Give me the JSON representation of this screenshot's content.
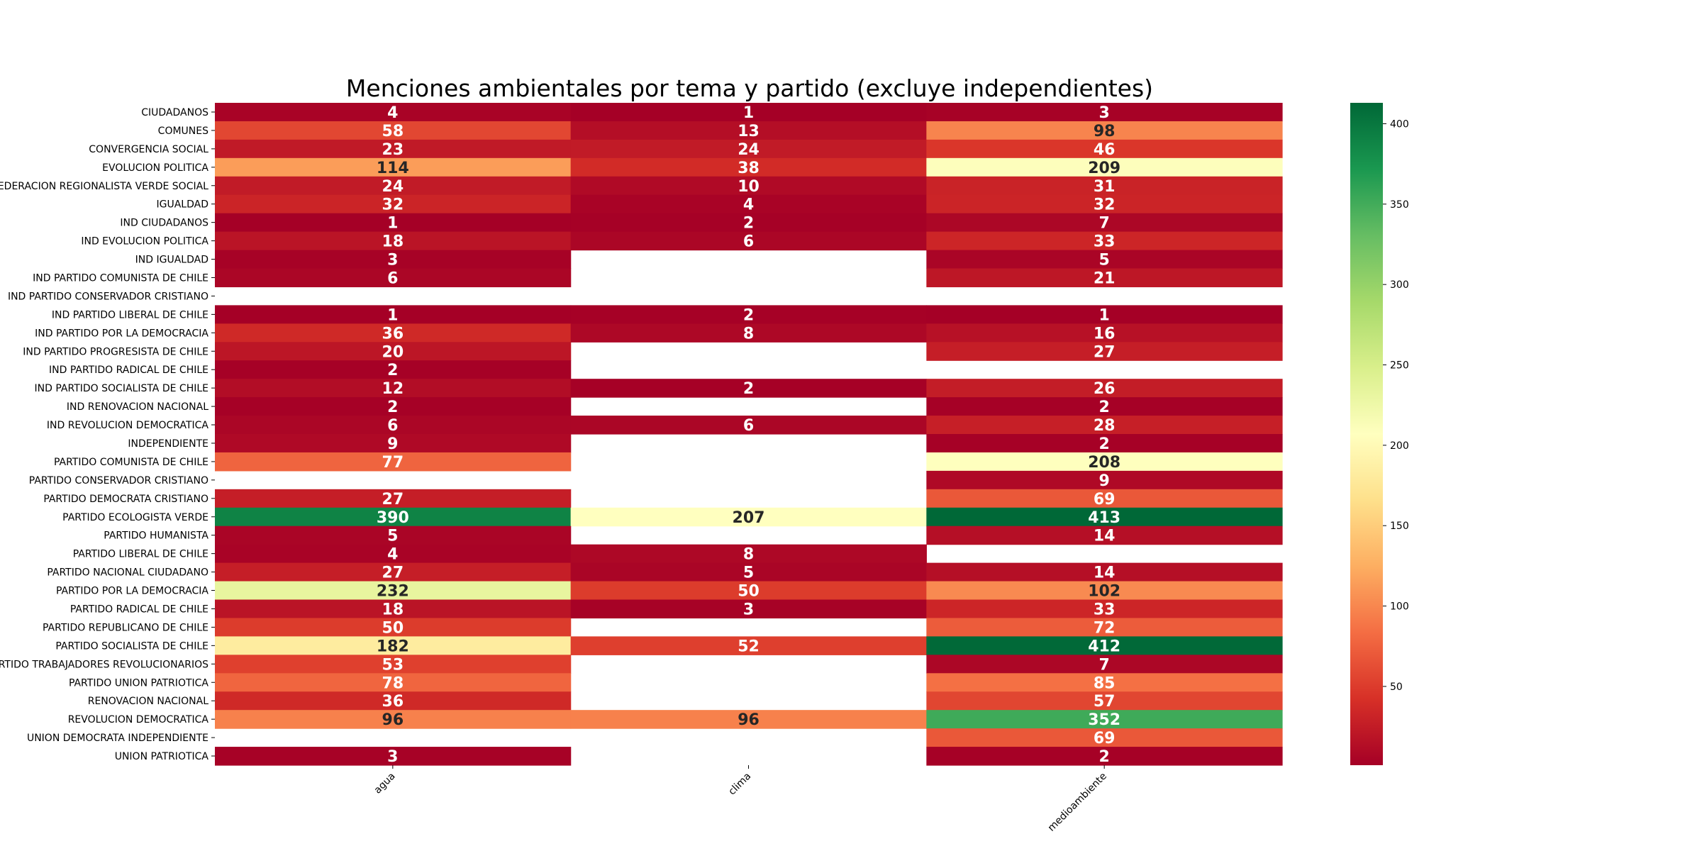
{
  "chart_data": {
    "type": "heatmap",
    "title": "Menciones ambientales por tema y partido (excluye independientes)",
    "columns": [
      "agua",
      "clima",
      "medioambiente"
    ],
    "rows": [
      "CIUDADANOS",
      "COMUNES",
      "CONVERGENCIA SOCIAL",
      "EVOLUCION POLITICA",
      "FEDERACION REGIONALISTA VERDE SOCIAL",
      "IGUALDAD",
      "IND CIUDADANOS",
      "IND EVOLUCION POLITICA",
      "IND IGUALDAD",
      "IND PARTIDO COMUNISTA DE CHILE",
      "IND PARTIDO CONSERVADOR CRISTIANO",
      "IND PARTIDO LIBERAL DE CHILE",
      "IND PARTIDO POR LA DEMOCRACIA",
      "IND PARTIDO PROGRESISTA DE CHILE",
      "IND PARTIDO RADICAL DE CHILE",
      "IND PARTIDO SOCIALISTA DE CHILE",
      "IND RENOVACION NACIONAL",
      "IND REVOLUCION DEMOCRATICA",
      "INDEPENDIENTE",
      "PARTIDO COMUNISTA DE CHILE",
      "PARTIDO CONSERVADOR CRISTIANO",
      "PARTIDO DEMOCRATA CRISTIANO",
      "PARTIDO ECOLOGISTA VERDE",
      "PARTIDO HUMANISTA",
      "PARTIDO LIBERAL DE CHILE",
      "PARTIDO NACIONAL CIUDADANO",
      "PARTIDO POR LA DEMOCRACIA",
      "PARTIDO RADICAL DE CHILE",
      "PARTIDO REPUBLICANO DE CHILE",
      "PARTIDO SOCIALISTA DE CHILE",
      "PARTIDO TRABAJADORES REVOLUCIONARIOS",
      "PARTIDO UNION PATRIOTICA",
      "RENOVACION NACIONAL",
      "REVOLUCION DEMOCRATICA",
      "UNION DEMOCRATA INDEPENDIENTE",
      "UNION PATRIOTICA"
    ],
    "values": [
      [
        4,
        1,
        3
      ],
      [
        58,
        13,
        98
      ],
      [
        23,
        24,
        46
      ],
      [
        114,
        38,
        209
      ],
      [
        24,
        10,
        31
      ],
      [
        32,
        4,
        32
      ],
      [
        1,
        2,
        7
      ],
      [
        18,
        6,
        33
      ],
      [
        3,
        null,
        5
      ],
      [
        6,
        null,
        21
      ],
      [
        null,
        null,
        null
      ],
      [
        1,
        2,
        1
      ],
      [
        36,
        8,
        16
      ],
      [
        20,
        null,
        27
      ],
      [
        2,
        null,
        null
      ],
      [
        12,
        2,
        26
      ],
      [
        2,
        null,
        2
      ],
      [
        6,
        6,
        28
      ],
      [
        9,
        null,
        2
      ],
      [
        77,
        null,
        208
      ],
      [
        null,
        null,
        9
      ],
      [
        27,
        null,
        69
      ],
      [
        390,
        207,
        413
      ],
      [
        5,
        null,
        14
      ],
      [
        4,
        8,
        null
      ],
      [
        27,
        5,
        14
      ],
      [
        232,
        50,
        102
      ],
      [
        18,
        3,
        33
      ],
      [
        50,
        null,
        72
      ],
      [
        182,
        52,
        412
      ],
      [
        53,
        null,
        7
      ],
      [
        78,
        null,
        85
      ],
      [
        36,
        null,
        57
      ],
      [
        96,
        96,
        352
      ],
      [
        null,
        null,
        69
      ],
      [
        3,
        null,
        2
      ]
    ],
    "colorbar": {
      "colormap": "RdYlGn",
      "vmin": 1,
      "vmax": 413,
      "ticks": [
        50,
        100,
        150,
        200,
        250,
        300,
        350,
        400
      ]
    }
  }
}
